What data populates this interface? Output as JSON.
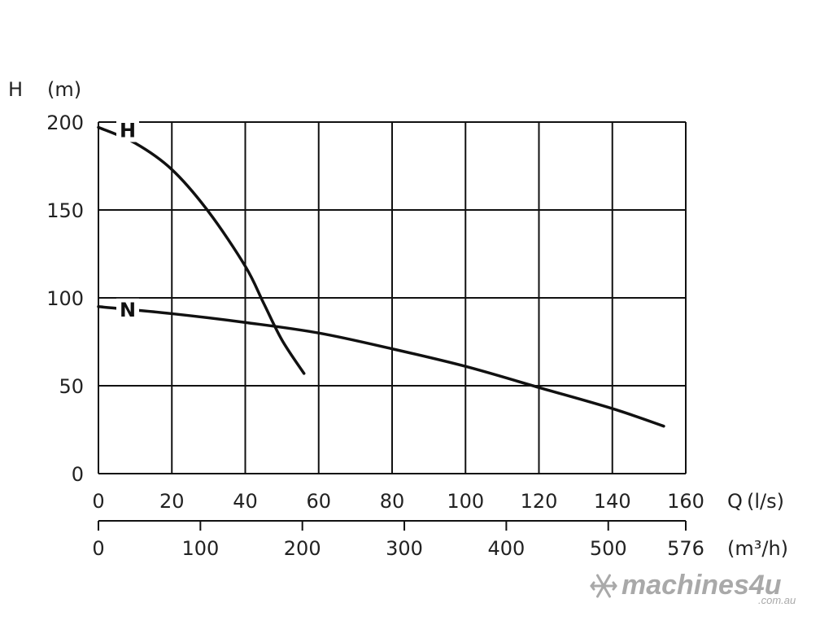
{
  "chart_data": {
    "type": "line",
    "ylabel": "H",
    "yunit": "(m)",
    "ylim": [
      0,
      200
    ],
    "yticks": [
      "0",
      "50",
      "100",
      "150",
      "200"
    ],
    "x_axis_primary": {
      "label": "Q",
      "unit": "(l/s)",
      "xlim": [
        0,
        160
      ],
      "ticks": [
        "0",
        "20",
        "40",
        "60",
        "80",
        "100",
        "120",
        "140",
        "160"
      ]
    },
    "x_axis_secondary": {
      "unit": "(m³/h)",
      "ticks": [
        {
          "value": 0,
          "label": "0"
        },
        {
          "value": 100,
          "label": "100"
        },
        {
          "value": 200,
          "label": "200"
        },
        {
          "value": 300,
          "label": "300"
        },
        {
          "value": 400,
          "label": "400"
        },
        {
          "value": 500,
          "label": "500"
        },
        {
          "value": 576,
          "label": "576"
        }
      ]
    },
    "grid": true,
    "series": [
      {
        "name": "H",
        "x": [
          0,
          10,
          20,
          30,
          40,
          45,
          50,
          56
        ],
        "y": [
          197,
          188,
          173,
          149,
          118,
          97,
          76,
          57
        ]
      },
      {
        "name": "N",
        "x": [
          0,
          20,
          40,
          60,
          80,
          100,
          120,
          140,
          154
        ],
        "y": [
          95,
          91,
          86,
          80,
          71,
          61,
          49,
          37,
          27
        ]
      }
    ]
  },
  "watermark": {
    "brand": "machines4u",
    "domain": ".com.au",
    "icon": "snowflake-logo-icon"
  }
}
